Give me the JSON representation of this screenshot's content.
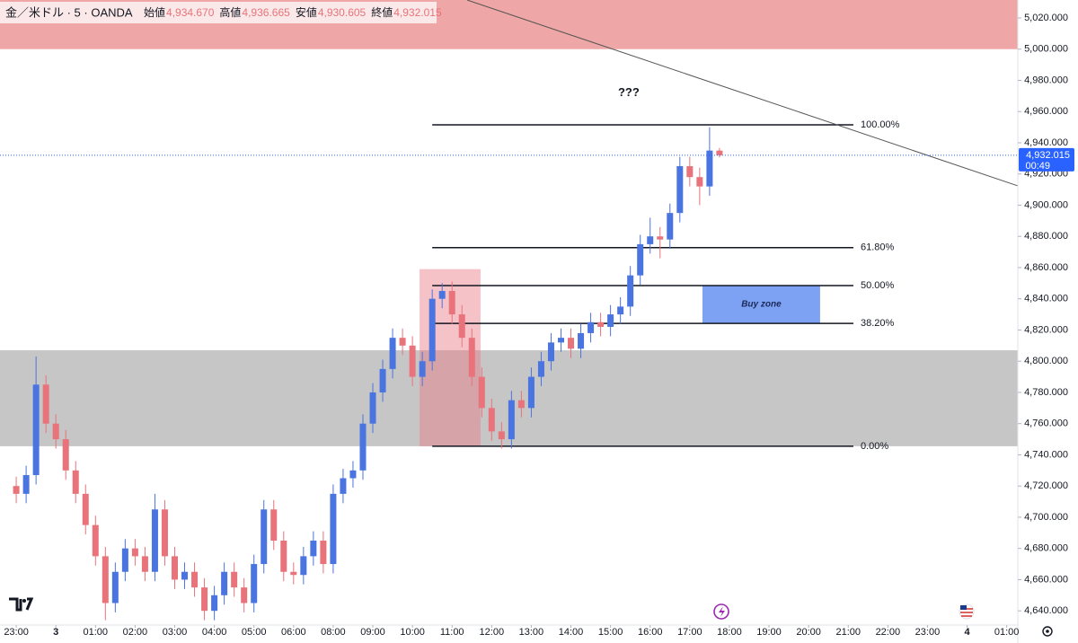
{
  "header": {
    "symbol": "金／米ドル · 5 · OANDA",
    "ohlc": [
      {
        "label": "始値",
        "value": "4,934.670"
      },
      {
        "label": "高値",
        "value": "4,936.665"
      },
      {
        "label": "安値",
        "value": "4,930.605"
      },
      {
        "label": "終値",
        "value": "4,932.015"
      }
    ]
  },
  "chart_data": {
    "type": "candlestick",
    "x": [
      0,
      0.25,
      0.5,
      0.75,
      1,
      1.25,
      1.5,
      1.75,
      2,
      2.25,
      2.5,
      2.75,
      3,
      3.25,
      3.5,
      3.75,
      4,
      4.25,
      4.5,
      4.75,
      5,
      5.25,
      5.5,
      5.75,
      6,
      6.25,
      6.5,
      6.75,
      7,
      7.25,
      7.5,
      7.75,
      8,
      8.25,
      8.5,
      8.75,
      9,
      9.25,
      9.5,
      9.75,
      10,
      10.25,
      10.5,
      10.75,
      11,
      11.25,
      11.5,
      11.75,
      12,
      12.25,
      12.5,
      12.75,
      13,
      13.25,
      13.5,
      13.75,
      14,
      14.25,
      14.5,
      14.75,
      15,
      15.25,
      15.5,
      15.75,
      16,
      16.25,
      16.5,
      16.75,
      17,
      17.25,
      17.5,
      17.75
    ],
    "open": [
      4720,
      4715,
      4727,
      4785,
      4760,
      4750,
      4730,
      4715,
      4695,
      4675,
      4645,
      4665,
      4680,
      4675,
      4665,
      4705,
      4675,
      4660,
      4665,
      4655,
      4640,
      4650,
      4665,
      4655,
      4645,
      4670,
      4705,
      4685,
      4665,
      4663,
      4675,
      4685,
      4670,
      4715,
      4725,
      4730,
      4760,
      4780,
      4795,
      4815,
      4810,
      4790,
      4800,
      4840,
      4845,
      4830,
      4815,
      4790,
      4770,
      4755,
      4750,
      4775,
      4770,
      4790,
      4800,
      4812,
      4815,
      4808,
      4818,
      4825,
      4822,
      4830,
      4835,
      4855,
      4875,
      4880,
      4878,
      4895,
      4925,
      4918,
      4912,
      4935
    ],
    "high": [
      4726,
      4733,
      4803,
      4791,
      4766,
      4756,
      4736,
      4721,
      4701,
      4681,
      4671,
      4686,
      4686,
      4681,
      4715,
      4711,
      4681,
      4671,
      4671,
      4661,
      4656,
      4671,
      4671,
      4661,
      4676,
      4711,
      4711,
      4691,
      4671,
      4681,
      4691,
      4691,
      4721,
      4731,
      4736,
      4766,
      4786,
      4801,
      4821,
      4821,
      4816,
      4806,
      4846,
      4850,
      4851,
      4836,
      4821,
      4796,
      4776,
      4761,
      4781,
      4781,
      4796,
      4806,
      4818,
      4821,
      4821,
      4824,
      4831,
      4831,
      4836,
      4841,
      4861,
      4881,
      4892,
      4886,
      4901,
      4931,
      4931,
      4924,
      4950,
      4936.665
    ],
    "low": [
      4709,
      4709,
      4721,
      4754,
      4744,
      4724,
      4709,
      4689,
      4669,
      4634,
      4639,
      4659,
      4669,
      4659,
      4659,
      4669,
      4654,
      4654,
      4649,
      4634,
      4634,
      4644,
      4649,
      4639,
      4639,
      4664,
      4679,
      4659,
      4657,
      4657,
      4669,
      4664,
      4664,
      4709,
      4719,
      4724,
      4754,
      4774,
      4789,
      4804,
      4784,
      4784,
      4794,
      4834,
      4824,
      4809,
      4784,
      4764,
      4749,
      4744,
      4744,
      4764,
      4764,
      4784,
      4794,
      4806,
      4802,
      4802,
      4812,
      4816,
      4816,
      4824,
      4829,
      4849,
      4869,
      4866,
      4872,
      4889,
      4912,
      4900,
      4906,
      4930.605
    ],
    "close": [
      4715,
      4727,
      4785,
      4760,
      4750,
      4730,
      4715,
      4695,
      4675,
      4645,
      4665,
      4680,
      4675,
      4665,
      4705,
      4675,
      4660,
      4665,
      4655,
      4640,
      4650,
      4665,
      4655,
      4645,
      4670,
      4705,
      4685,
      4665,
      4663,
      4675,
      4685,
      4670,
      4715,
      4725,
      4730,
      4760,
      4780,
      4795,
      4815,
      4810,
      4790,
      4800,
      4840,
      4845,
      4830,
      4815,
      4790,
      4770,
      4755,
      4750,
      4775,
      4770,
      4790,
      4800,
      4812,
      4815,
      4808,
      4818,
      4825,
      4822,
      4830,
      4835,
      4855,
      4875,
      4880,
      4878,
      4895,
      4925,
      4918,
      4912,
      4935,
      4932.015
    ],
    "up_color": "#4a74e0",
    "down_color": "#e8737a",
    "xlim": [
      -0.41,
      25.28
    ],
    "xticks": [
      {
        "value": 0,
        "label": "23:00"
      },
      {
        "value": 1,
        "label": "3"
      },
      {
        "value": 2,
        "label": "01:00"
      },
      {
        "value": 3,
        "label": "02:00"
      },
      {
        "value": 4,
        "label": "03:00"
      },
      {
        "value": 5,
        "label": "04:00"
      },
      {
        "value": 6,
        "label": "05:00"
      },
      {
        "value": 7,
        "label": "06:00"
      },
      {
        "value": 8,
        "label": "08:00"
      },
      {
        "value": 9,
        "label": "09:00"
      },
      {
        "value": 10,
        "label": "10:00"
      },
      {
        "value": 11,
        "label": "11:00"
      },
      {
        "value": 12,
        "label": "12:00"
      },
      {
        "value": 13,
        "label": "13:00"
      },
      {
        "value": 14,
        "label": "14:00"
      },
      {
        "value": 15,
        "label": "15:00"
      },
      {
        "value": 16,
        "label": "16:00"
      },
      {
        "value": 17,
        "label": "17:00"
      },
      {
        "value": 18,
        "label": "18:00"
      },
      {
        "value": 19,
        "label": "19:00"
      },
      {
        "value": 20,
        "label": "20:00"
      },
      {
        "value": 21,
        "label": "21:00"
      },
      {
        "value": 22,
        "label": "22:00"
      },
      {
        "value": 23,
        "label": "23:00"
      },
      {
        "value": 24,
        "label": "4"
      },
      {
        "value": 25,
        "label": "01:00"
      }
    ],
    "ylim": [
      4630.9,
      5031.5
    ],
    "yticks": [
      {
        "value": 4640,
        "label": "4,640.000"
      },
      {
        "value": 4660,
        "label": "4,660.000"
      },
      {
        "value": 4680,
        "label": "4,680.000"
      },
      {
        "value": 4700,
        "label": "4,700.000"
      },
      {
        "value": 4720,
        "label": "4,720.000"
      },
      {
        "value": 4740,
        "label": "4,740.000"
      },
      {
        "value": 4760,
        "label": "4,760.000"
      },
      {
        "value": 4780,
        "label": "4,780.000"
      },
      {
        "value": 4800,
        "label": "4,800.000"
      },
      {
        "value": 4820,
        "label": "4,820.000"
      },
      {
        "value": 4840,
        "label": "4,840.000"
      },
      {
        "value": 4860,
        "label": "4,860.000"
      },
      {
        "value": 4880,
        "label": "4,880.000"
      },
      {
        "value": 4900,
        "label": "4,900.000"
      },
      {
        "value": 4920,
        "label": "4,920.000"
      },
      {
        "value": 4940,
        "label": "4,940.000"
      },
      {
        "value": 4960,
        "label": "4,960.000"
      },
      {
        "value": 4980,
        "label": "4,980.000"
      },
      {
        "value": 5000,
        "label": "5,000.000"
      },
      {
        "value": 5020,
        "label": "5,020.000"
      }
    ],
    "zones": [
      {
        "x": [
          -0.41,
          25.28
        ],
        "y": [
          5000,
          5031.5
        ],
        "color": "#eea6a6"
      },
      {
        "x": [
          -0.41,
          25.28
        ],
        "y": [
          4745.5,
          4807
        ],
        "color": "#c6c6c6"
      },
      {
        "x": [
          10.18,
          11.72
        ],
        "y": [
          4745.5,
          4859
        ],
        "color": "rgba(232,120,130,0.45)"
      }
    ],
    "fib": {
      "x": [
        10.5,
        21.13
      ],
      "high": 4951.5,
      "low": 4745.5,
      "levels": [
        100,
        61.8,
        50,
        38.2,
        0
      ],
      "level_labels": [
        "100.00%",
        "61.80%",
        "50.00%",
        "38.20%",
        "0.00%"
      ]
    },
    "buy_zone": {
      "text": "Buy zone",
      "x": [
        17.32,
        20.29
      ],
      "y": [
        4824.2,
        4848.5
      ],
      "color": "#7ea2f3"
    },
    "trend_line": {
      "x": [
        11.38,
        25.28
      ],
      "y": [
        5031.5,
        4912.4
      ]
    },
    "annotations": [
      {
        "text": "???",
        "x": 15.46,
        "y": 4972
      }
    ],
    "last_price": {
      "value": 4932.015,
      "label": "4,932.015",
      "countdown": "00:49"
    }
  }
}
